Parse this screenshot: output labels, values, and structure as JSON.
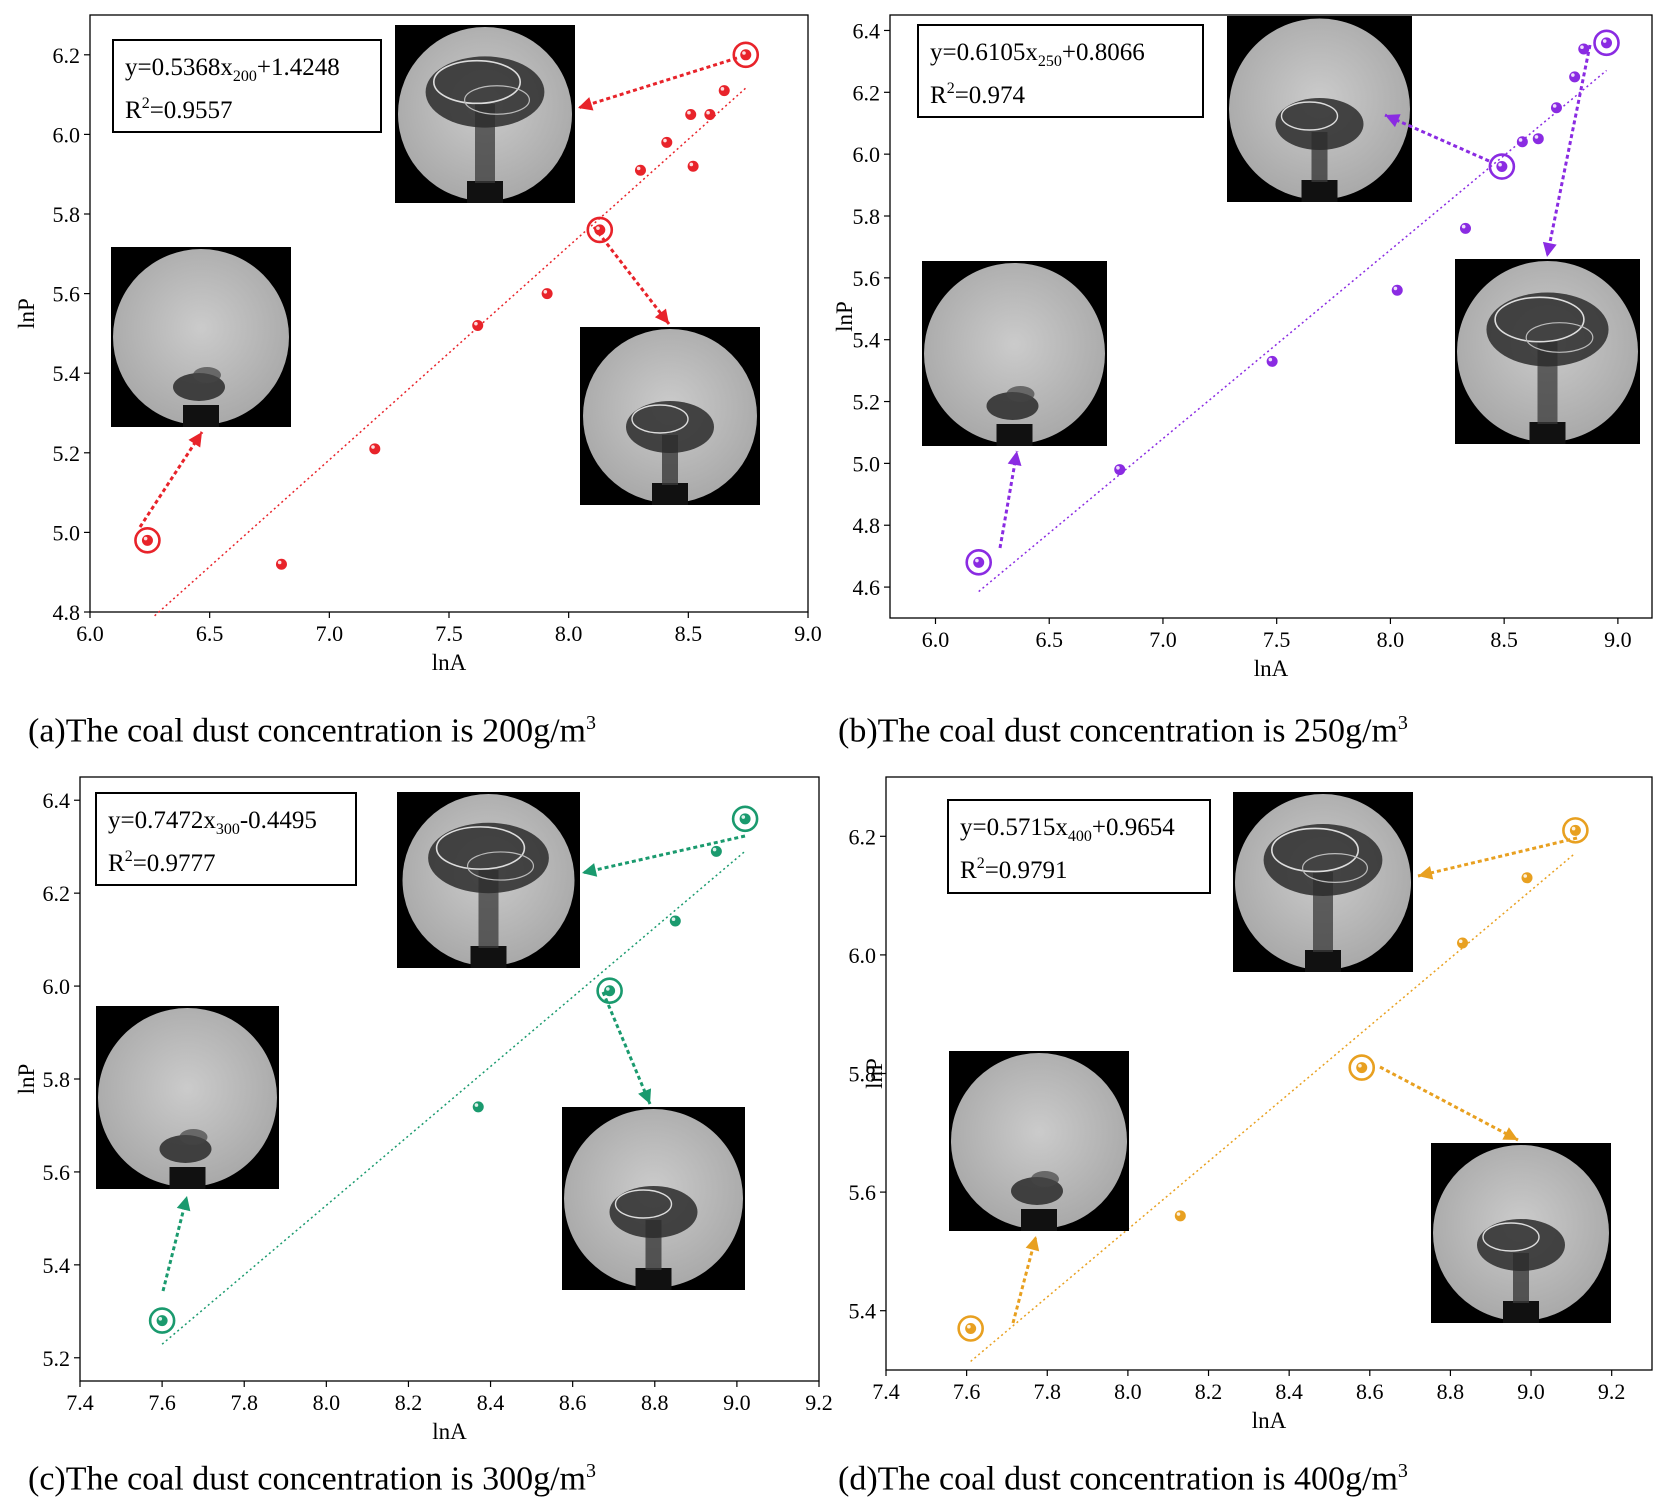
{
  "colors": {
    "a": "#e8232a",
    "b": "#8a2be2",
    "c": "#1a9a6e",
    "d": "#e8a020"
  },
  "chart_data": [
    {
      "id": "a",
      "type": "scatter",
      "color_key": "a",
      "xlabel": "lnA",
      "ylabel": "lnP",
      "xlim": [
        6.0,
        9.0
      ],
      "ylim": [
        4.8,
        6.3
      ],
      "xticks": [
        "6.0",
        "6.5",
        "7.0",
        "7.5",
        "8.0",
        "8.5",
        "9.0"
      ],
      "yticks": [
        "4.8",
        "5.0",
        "5.2",
        "5.4",
        "5.6",
        "5.8",
        "6.0",
        "6.2"
      ],
      "points": [
        [
          6.24,
          4.98
        ],
        [
          6.8,
          4.92
        ],
        [
          7.19,
          5.21
        ],
        [
          7.62,
          5.52
        ],
        [
          7.91,
          5.6
        ],
        [
          8.13,
          5.76
        ],
        [
          8.3,
          5.91
        ],
        [
          8.41,
          5.98
        ],
        [
          8.51,
          6.05
        ],
        [
          8.52,
          5.92
        ],
        [
          8.59,
          6.05
        ],
        [
          8.65,
          6.11
        ],
        [
          8.74,
          6.2
        ]
      ],
      "highlighted": [
        [
          6.24,
          4.98
        ],
        [
          8.13,
          5.76
        ],
        [
          8.74,
          6.2
        ]
      ],
      "fit": {
        "slope": 0.5368,
        "intercept": 1.4248,
        "x_range": [
          6.27,
          8.74
        ]
      },
      "equation": {
        "main": "y=0.5368x",
        "sub": "200",
        "tail": "+1.4248",
        "r2_prefix": "R",
        "r2_sup": "2",
        "r2_value": "=0.9557"
      },
      "caption": {
        "text": "(a)The coal dust concentration is 200g/m",
        "sup": "3"
      }
    },
    {
      "id": "b",
      "type": "scatter",
      "color_key": "b",
      "xlabel": "lnA",
      "ylabel": "lnP",
      "xlim": [
        5.8,
        9.15
      ],
      "ylim": [
        4.5,
        6.45
      ],
      "xticks": [
        "6.0",
        "6.5",
        "7.0",
        "7.5",
        "8.0",
        "8.5",
        "9.0"
      ],
      "yticks": [
        "4.6",
        "4.8",
        "5.0",
        "5.2",
        "5.4",
        "5.6",
        "5.8",
        "6.0",
        "6.2",
        "6.4"
      ],
      "points": [
        [
          6.19,
          4.68
        ],
        [
          6.81,
          4.98
        ],
        [
          7.48,
          5.33
        ],
        [
          8.03,
          5.56
        ],
        [
          8.33,
          5.76
        ],
        [
          8.49,
          5.96
        ],
        [
          8.58,
          6.04
        ],
        [
          8.65,
          6.05
        ],
        [
          8.73,
          6.15
        ],
        [
          8.81,
          6.25
        ],
        [
          8.85,
          6.34
        ],
        [
          8.95,
          6.36
        ]
      ],
      "highlighted": [
        [
          6.19,
          4.68
        ],
        [
          8.49,
          5.96
        ],
        [
          8.95,
          6.36
        ]
      ],
      "fit": {
        "slope": 0.6105,
        "intercept": 0.8066,
        "x_range": [
          6.19,
          8.95
        ]
      },
      "equation": {
        "main": "y=0.6105x",
        "sub": "250",
        "tail": "+0.8066",
        "r2_prefix": "R",
        "r2_sup": "2",
        "r2_value": "=0.974"
      },
      "caption": {
        "text": "(b)The coal dust concentration is 250g/m",
        "sup": "3"
      }
    },
    {
      "id": "c",
      "type": "scatter",
      "color_key": "c",
      "xlabel": "lnA",
      "ylabel": "lnP",
      "xlim": [
        7.4,
        9.2
      ],
      "ylim": [
        5.15,
        6.45
      ],
      "xticks": [
        "7.4",
        "7.6",
        "7.8",
        "8.0",
        "8.2",
        "8.4",
        "8.6",
        "8.8",
        "9.0",
        "9.2"
      ],
      "yticks": [
        "5.2",
        "5.4",
        "5.6",
        "5.8",
        "6.0",
        "6.2",
        "6.4"
      ],
      "points": [
        [
          7.6,
          5.28
        ],
        [
          8.37,
          5.74
        ],
        [
          8.69,
          5.99
        ],
        [
          8.85,
          6.14
        ],
        [
          8.95,
          6.29
        ],
        [
          9.02,
          6.36
        ]
      ],
      "highlighted": [
        [
          7.6,
          5.28
        ],
        [
          8.69,
          5.99
        ],
        [
          9.02,
          6.36
        ]
      ],
      "fit": {
        "slope": 0.7472,
        "intercept": -0.4495,
        "x_range": [
          7.6,
          9.02
        ]
      },
      "equation": {
        "main": "y=0.7472x",
        "sub": "300",
        "tail": "-0.4495",
        "r2_prefix": "R",
        "r2_sup": "2",
        "r2_value": "=0.9777"
      },
      "caption": {
        "text": "(c)The coal dust concentration is 300g/m",
        "sup": "3"
      }
    },
    {
      "id": "d",
      "type": "scatter",
      "color_key": "d",
      "xlabel": "lnA",
      "ylabel": "lnP",
      "xlim": [
        7.4,
        9.3
      ],
      "ylim": [
        5.3,
        6.3
      ],
      "xticks": [
        "7.4",
        "7.6",
        "7.8",
        "8.0",
        "8.2",
        "8.4",
        "8.6",
        "8.8",
        "9.0",
        "9.2"
      ],
      "yticks": [
        "5.4",
        "5.6",
        "5.8",
        "6.0",
        "6.2"
      ],
      "points": [
        [
          7.61,
          5.37
        ],
        [
          8.13,
          5.56
        ],
        [
          8.58,
          5.81
        ],
        [
          8.83,
          6.02
        ],
        [
          8.99,
          6.13
        ],
        [
          9.11,
          6.21
        ]
      ],
      "highlighted": [
        [
          7.61,
          5.37
        ],
        [
          8.58,
          5.81
        ],
        [
          9.11,
          6.21
        ]
      ],
      "fit": {
        "slope": 0.5715,
        "intercept": 0.9654,
        "x_range": [
          7.61,
          9.11
        ]
      },
      "equation": {
        "main": "y=0.5715x",
        "sub": "400",
        "tail": "+0.9654",
        "r2_prefix": "R",
        "r2_sup": "2",
        "r2_value": "=0.9791"
      },
      "caption": {
        "text": "(d)The coal dust concentration is 400g/m",
        "sup": "3"
      }
    }
  ]
}
